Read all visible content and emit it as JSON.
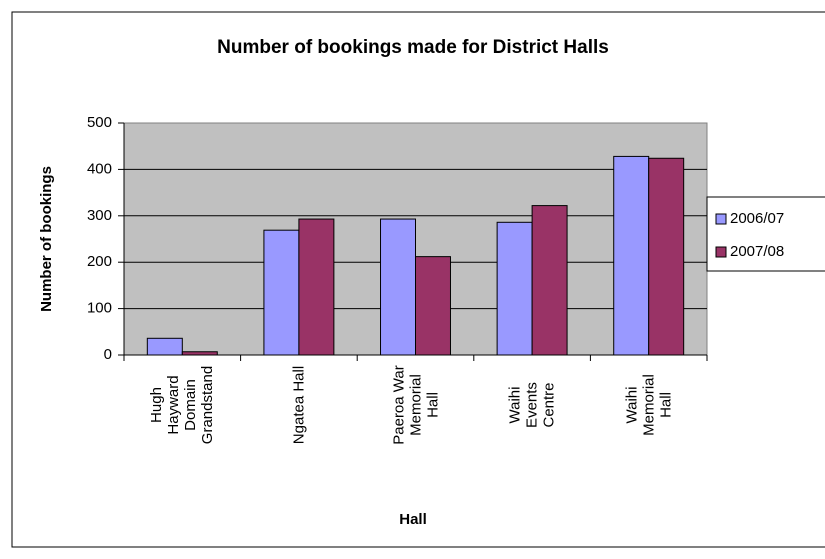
{
  "chart_data": {
    "type": "bar",
    "title": "Number of bookings made for District Halls",
    "x_label": "Hall",
    "y_label": "Number of bookings",
    "categories": [
      "Hugh Hayward Domain Grandstand",
      "Ngatea Hall",
      "Paeroa War Memorial Hall",
      "Waihi Events Centre",
      "Waihi Memorial Hall"
    ],
    "series": [
      {
        "name": "2006/07",
        "color": "#9999ff",
        "values": [
          36,
          269,
          293,
          286,
          428
        ]
      },
      {
        "name": "2007/08",
        "color": "#993366",
        "values": [
          7,
          293,
          212,
          322,
          424
        ]
      }
    ],
    "ylim": [
      0,
      500
    ],
    "yticks": [
      0,
      100,
      200,
      300,
      400,
      500
    ],
    "grid": true,
    "legend": "right"
  }
}
